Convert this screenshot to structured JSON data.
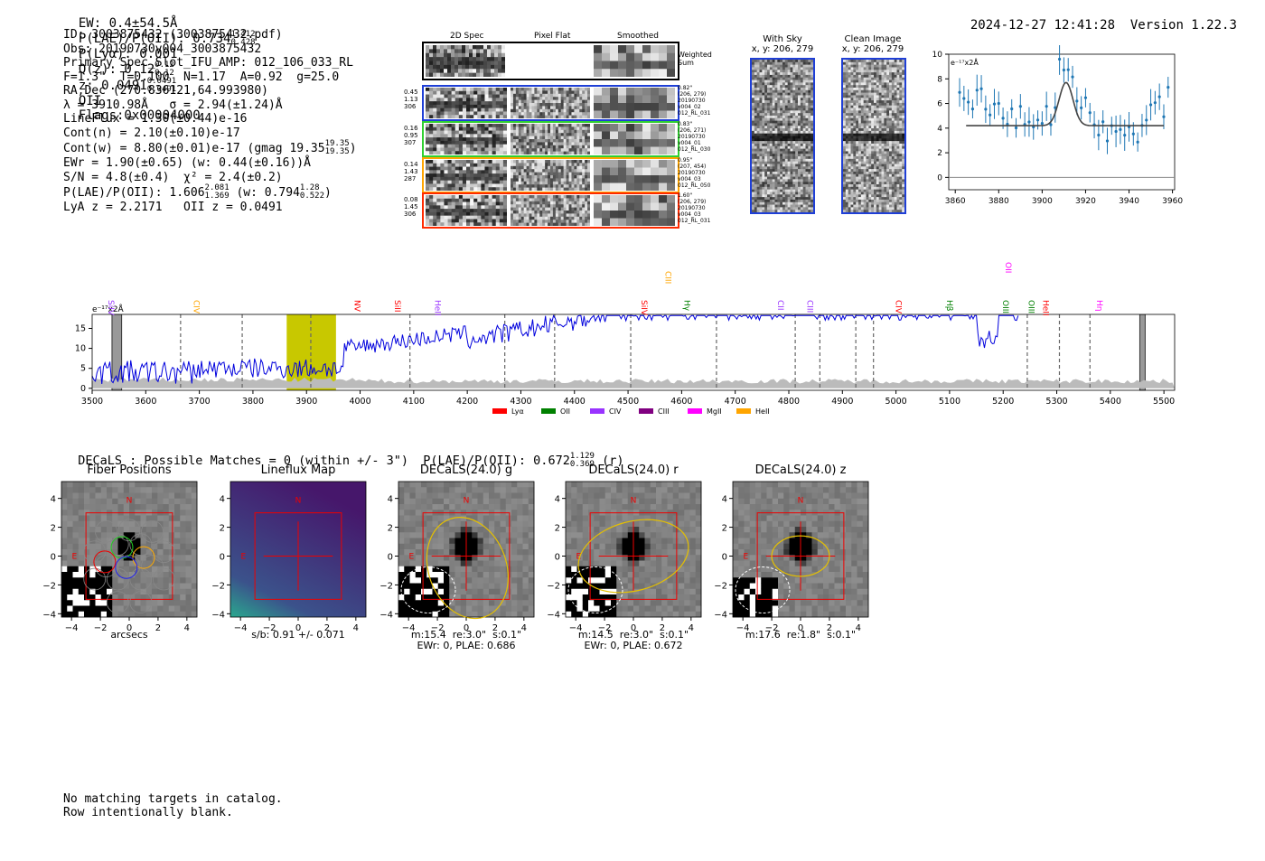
{
  "header": {
    "ew": "EW: 0.4±54.5Å",
    "ew_sup": "",
    "plae": "P(LAE)/P(OII): 0.734",
    "plae_hi": "1.412",
    "plae_lo": "0.428",
    "plya": "P(Lyα): 0.001",
    "qz": "Q(z): 0.12",
    "qz_hi": "0.12",
    "qz_lo": "0.12",
    "z": "z: 0.0491",
    "z_hi": "0.0491",
    "z_lo": "0.0491",
    "z_line": "OII",
    "flags": "Flags:0x00004000",
    "datetime": "2024-12-27 12:41:28",
    "version": "Version 1.22.3"
  },
  "info": {
    "id": "ID: 3003875432 (3003875432.pdf)",
    "obs": "Obs: 20190730v004_3003875432",
    "primary": "Primary Spec_Slot_IFU_AMP: 012_106_033_RL",
    "fiber": "F=1.3\"  T=0.100  N=1.17  A=0.92  g=25.0",
    "radec": "RA,Dec (270.836121,64.993980)",
    "lambda": "λ = 3910.98Å   σ = 2.94(±1.24)Å",
    "lineflux": "LineFlux = 1.30(±0.44)e-16",
    "contn": "Cont(n) = 2.10(±0.10)e-17",
    "contw": "Cont(w) = 8.80(±0.01)e-17 (gmag 19.35",
    "contw_hi": "19.35",
    "contw_lo": "19.35",
    "contw_end": ")",
    "ewr": "EWr = 1.90(±0.65) (w: 0.44(±0.16))Å",
    "sn": "S/N = 4.8(±0.4)  χ² = 2.4(±0.2)",
    "plae": "P(LAE)/P(OII): 1.606",
    "plae_hi": "2.081",
    "plae_lo": "1.369",
    "plae_w": "(w: 0.794",
    "plae_w_hi": "1.28",
    "plae_w_lo": "0.522",
    "plae_end": ")",
    "lyaz": "LyA z = 2.2171   OII z = 0.0491"
  },
  "cutouts": {
    "col_labels": [
      "2D Spec",
      "Pixel Flat",
      "Smoothed"
    ],
    "weighted": "Weighted\nSum",
    "rows": [
      {
        "left": "0.45\n1.13\n306",
        "right": "0.82\"\n(206, 279)\n20190730\nv004_02\n012_RL_031",
        "color": "#1f3fd6"
      },
      {
        "left": "0.16\n0.95\n307",
        "right": "0.83\"\n(206, 271)\n20190730\nv004_01\n012_RL_030",
        "color": "#30d030"
      },
      {
        "left": "0.14\n1.43\n287",
        "right": "0.95\"\n(207, 454)\n20190730\nv004_03\n012_RL_050",
        "color": "#ffa500"
      },
      {
        "left": "0.08\n1.45\n306",
        "right": "1.60\"\n(206, 279)\n20190730\nv004_03\n012_RL_031",
        "color": "#ff2a00"
      }
    ]
  },
  "sky": {
    "with_sky": "With Sky\nx, y: 206, 279",
    "clean": "Clean Image\nx, y: 206, 279"
  },
  "zoom_plot": {
    "ylabel": "e⁻¹⁷x2Å",
    "x_ticks": [
      "3860",
      "3880",
      "3900",
      "3920",
      "3940",
      "3960"
    ],
    "y_ticks": [
      "0",
      "2",
      "4",
      "6",
      "8",
      "10"
    ]
  },
  "spectrum": {
    "ylabel": "e⁻¹⁷x2Å",
    "x_ticks": [
      "3500",
      "3600",
      "3700",
      "3800",
      "3900",
      "4000",
      "4100",
      "4200",
      "4300",
      "4400",
      "4500",
      "4600",
      "4700",
      "4800",
      "4900",
      "5000",
      "5100",
      "5200",
      "5300",
      "5400",
      "5500"
    ],
    "y_ticks": [
      "0",
      "5",
      "10",
      "15"
    ],
    "lines": [
      {
        "label": "SiIV",
        "color": "#9933ff"
      },
      {
        "label": "CIV",
        "color": "#ffa500"
      },
      {
        "label": "NV",
        "color": "#ff0000"
      },
      {
        "label": "SiII",
        "color": "#ff0000"
      },
      {
        "label": "HeII",
        "color": "#9933ff"
      },
      {
        "label": "SiIV",
        "color": "#ff0000"
      },
      {
        "label": "CIII",
        "color": "#ffa500"
      },
      {
        "label": "Hγ",
        "color": "#008000"
      },
      {
        "label": "CII",
        "color": "#9933ff"
      },
      {
        "label": "CIII",
        "color": "#9933ff"
      },
      {
        "label": "CIV",
        "color": "#ff0000"
      },
      {
        "label": "Hβ",
        "color": "#008000"
      },
      {
        "label": "OIII",
        "color": "#008000"
      },
      {
        "label": "OII",
        "color": "#ff00ff"
      },
      {
        "label": "OIII",
        "color": "#008000"
      },
      {
        "label": "HeII",
        "color": "#ff0000"
      },
      {
        "label": "Hη",
        "color": "#ff00ff"
      }
    ],
    "legend": [
      {
        "label": "Lyα",
        "color": "#ff0000"
      },
      {
        "label": "OII",
        "color": "#008000"
      },
      {
        "label": "CIV",
        "color": "#9933ff"
      },
      {
        "label": "CIII",
        "color": "#800080"
      },
      {
        "label": "MgII",
        "color": "#ff00ff"
      },
      {
        "label": "HeII",
        "color": "#ffa500"
      }
    ]
  },
  "decals": {
    "title": "DECaLS : Possible Matches = 0 (within +/- 3\")  P(LAE)/P(OII): 0.672",
    "hi": "1.129",
    "lo": "0.369",
    "band": "(r)",
    "panels": [
      {
        "title": "Fiber Positions",
        "sub": "arcsecs"
      },
      {
        "title": "Lineflux Map",
        "sub": "s/b: 0.91 +/- 0.071"
      },
      {
        "title": "DECaLS(24.0) g",
        "sub": "m:15.4  re:3.0\"  s:0.1\"\nEWr: 0, PLAE: 0.686"
      },
      {
        "title": "DECaLS(24.0) r",
        "sub": "m:14.5  re:3.0\"  s:0.1\"\nEWr: 0, PLAE: 0.672"
      },
      {
        "title": "DECaLS(24.0) z",
        "sub": "m:17.6  re:1.8\"  s:0.1\""
      }
    ],
    "axis_ticks_x": [
      "−4",
      "−2",
      "0",
      "2",
      "4"
    ],
    "axis_ticks_y": [
      "4",
      "2",
      "0",
      "−2",
      "−4"
    ],
    "n_label": "N",
    "e_label": "E"
  },
  "footer": {
    "line1": "No matching targets in catalog.",
    "line2": "Row intentionally blank."
  }
}
